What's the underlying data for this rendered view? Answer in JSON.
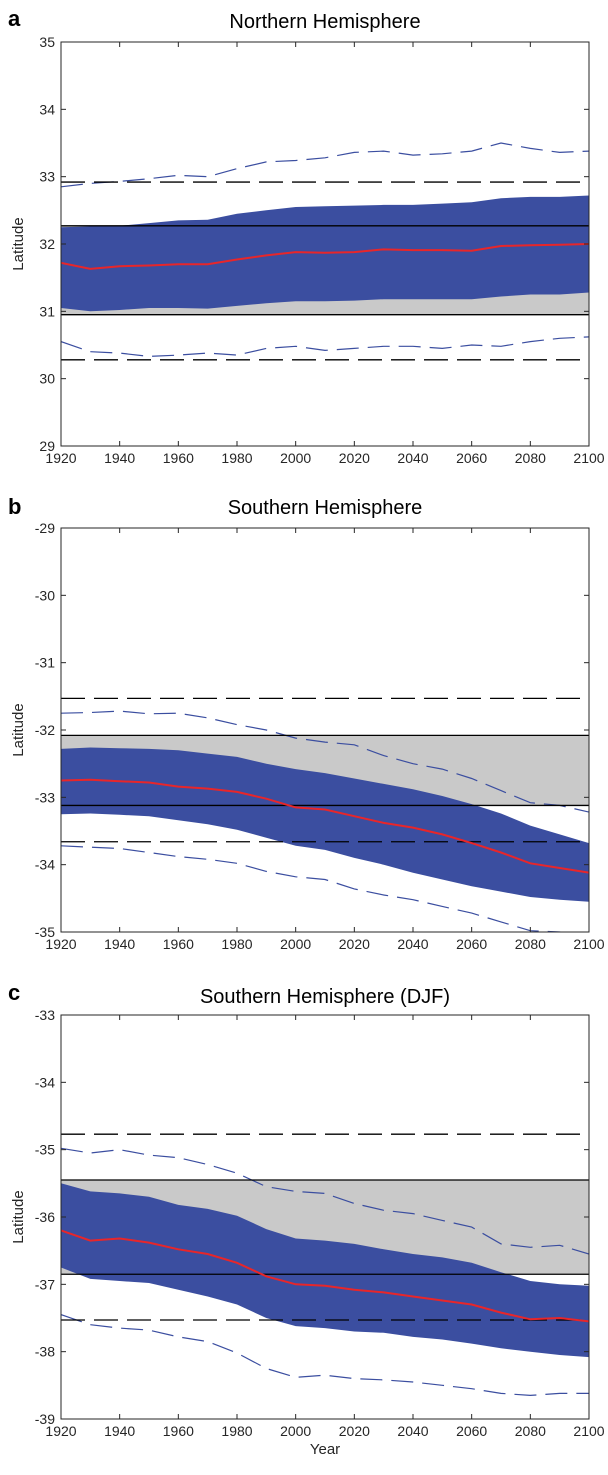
{
  "colors": {
    "band": "#3b4ea0",
    "mean": "#e8262a",
    "gray": "#c9c9c9",
    "dashed_thin": "#3b4ea0",
    "ref": "#000000"
  },
  "chart_data": [
    {
      "type": "line",
      "panel": "a",
      "title": "Northern Hemisphere",
      "xlabel": "",
      "ylabel": "Latitude",
      "xlim": [
        1920,
        2100
      ],
      "ylim": [
        29,
        35
      ],
      "xticks": [
        "1920",
        "1940",
        "1960",
        "1980",
        "2000",
        "2020",
        "2040",
        "2060",
        "2080",
        "2100"
      ],
      "yticks": [
        "29",
        "30",
        "31",
        "32",
        "33",
        "34",
        "35"
      ],
      "reference_box": [
        30.95,
        32.27
      ],
      "reference_dashed": [
        30.28,
        32.92
      ],
      "x": [
        1920,
        1930,
        1940,
        1950,
        1960,
        1970,
        1980,
        1990,
        2000,
        2010,
        2020,
        2030,
        2040,
        2050,
        2060,
        2070,
        2080,
        2090,
        2100
      ],
      "mean": [
        31.72,
        31.63,
        31.67,
        31.68,
        31.7,
        31.7,
        31.77,
        31.83,
        31.88,
        31.87,
        31.88,
        31.92,
        31.91,
        31.91,
        31.9,
        31.97,
        31.98,
        31.99,
        32.0
      ],
      "band_low": [
        31.05,
        31.0,
        31.02,
        31.05,
        31.05,
        31.04,
        31.08,
        31.12,
        31.15,
        31.15,
        31.16,
        31.18,
        31.18,
        31.18,
        31.18,
        31.22,
        31.25,
        31.25,
        31.28
      ],
      "band_high": [
        32.25,
        32.26,
        32.27,
        32.31,
        32.35,
        32.36,
        32.45,
        32.5,
        32.55,
        32.56,
        32.57,
        32.58,
        32.58,
        32.6,
        32.62,
        32.68,
        32.7,
        32.7,
        32.72
      ],
      "upper_thin": [
        32.85,
        32.9,
        32.93,
        32.97,
        33.02,
        33.0,
        33.12,
        33.22,
        33.24,
        33.28,
        33.36,
        33.38,
        33.32,
        33.34,
        33.38,
        33.5,
        33.42,
        33.36,
        33.38
      ],
      "lower_thin": [
        30.55,
        30.4,
        30.38,
        30.33,
        30.35,
        30.38,
        30.35,
        30.45,
        30.48,
        30.42,
        30.45,
        30.48,
        30.48,
        30.45,
        30.5,
        30.48,
        30.55,
        30.6,
        30.62
      ]
    },
    {
      "type": "line",
      "panel": "b",
      "title": "Southern Hemisphere",
      "xlabel": "",
      "ylabel": "Latitude",
      "xlim": [
        1920,
        2100
      ],
      "ylim": [
        -35,
        -29
      ],
      "xticks": [
        "1920",
        "1940",
        "1960",
        "1980",
        "2000",
        "2020",
        "2040",
        "2060",
        "2080",
        "2100"
      ],
      "yticks": [
        "-35",
        "-34",
        "-33",
        "-32",
        "-31",
        "-30",
        "-29"
      ],
      "reference_box": [
        -33.12,
        -32.08
      ],
      "reference_dashed": [
        -33.66,
        -31.53
      ],
      "x": [
        1920,
        1930,
        1940,
        1950,
        1960,
        1970,
        1980,
        1990,
        2000,
        2010,
        2020,
        2030,
        2040,
        2050,
        2060,
        2070,
        2080,
        2090,
        2100
      ],
      "mean": [
        -32.75,
        -32.74,
        -32.76,
        -32.78,
        -32.84,
        -32.87,
        -32.92,
        -33.02,
        -33.15,
        -33.18,
        -33.28,
        -33.38,
        -33.45,
        -33.55,
        -33.68,
        -33.82,
        -33.98,
        -34.05,
        -34.12
      ],
      "band_low": [
        -33.25,
        -33.24,
        -33.26,
        -33.28,
        -33.34,
        -33.4,
        -33.48,
        -33.6,
        -33.72,
        -33.78,
        -33.9,
        -34.0,
        -34.12,
        -34.22,
        -34.32,
        -34.4,
        -34.48,
        -34.52,
        -34.55
      ],
      "band_high": [
        -32.28,
        -32.26,
        -32.27,
        -32.28,
        -32.3,
        -32.35,
        -32.4,
        -32.5,
        -32.58,
        -32.64,
        -32.72,
        -32.8,
        -32.88,
        -32.98,
        -33.1,
        -33.24,
        -33.42,
        -33.55,
        -33.68
      ],
      "upper_thin": [
        -31.75,
        -31.74,
        -31.72,
        -31.76,
        -31.75,
        -31.82,
        -31.92,
        -32.0,
        -32.12,
        -32.18,
        -32.22,
        -32.38,
        -32.5,
        -32.58,
        -32.72,
        -32.9,
        -33.08,
        -33.12,
        -33.22
      ],
      "lower_thin": [
        -33.72,
        -33.74,
        -33.76,
        -33.82,
        -33.88,
        -33.92,
        -33.98,
        -34.1,
        -34.18,
        -34.22,
        -34.36,
        -34.45,
        -34.52,
        -34.62,
        -34.72,
        -34.85,
        -34.98,
        -35.0,
        -35.05
      ]
    },
    {
      "type": "line",
      "panel": "c",
      "title": "Southern Hemisphere (DJF)",
      "xlabel": "Year",
      "ylabel": "Latitude",
      "xlim": [
        1920,
        2100
      ],
      "ylim": [
        -39,
        -33
      ],
      "xticks": [
        "1920",
        "1940",
        "1960",
        "1980",
        "2000",
        "2020",
        "2040",
        "2060",
        "2080",
        "2100"
      ],
      "yticks": [
        "-39",
        "-38",
        "-37",
        "-36",
        "-35",
        "-34",
        "-33"
      ],
      "reference_box": [
        -36.85,
        -35.45
      ],
      "reference_dashed": [
        -37.53,
        -34.77
      ],
      "x": [
        1920,
        1930,
        1940,
        1950,
        1960,
        1970,
        1980,
        1990,
        2000,
        2010,
        2020,
        2030,
        2040,
        2050,
        2060,
        2070,
        2080,
        2090,
        2100
      ],
      "mean": [
        -36.2,
        -36.35,
        -36.32,
        -36.38,
        -36.48,
        -36.55,
        -36.68,
        -36.88,
        -37.0,
        -37.02,
        -37.08,
        -37.12,
        -37.18,
        -37.24,
        -37.3,
        -37.42,
        -37.52,
        -37.5,
        -37.55
      ],
      "band_low": [
        -36.75,
        -36.92,
        -36.95,
        -36.98,
        -37.08,
        -37.18,
        -37.3,
        -37.5,
        -37.62,
        -37.65,
        -37.7,
        -37.72,
        -37.78,
        -37.82,
        -37.88,
        -37.95,
        -38.0,
        -38.05,
        -38.08
      ],
      "band_high": [
        -35.5,
        -35.62,
        -35.65,
        -35.7,
        -35.82,
        -35.88,
        -35.98,
        -36.18,
        -36.32,
        -36.35,
        -36.4,
        -36.48,
        -36.55,
        -36.6,
        -36.68,
        -36.82,
        -36.95,
        -37.0,
        -37.02
      ],
      "upper_thin": [
        -34.98,
        -35.05,
        -35.0,
        -35.08,
        -35.12,
        -35.22,
        -35.35,
        -35.55,
        -35.62,
        -35.65,
        -35.8,
        -35.9,
        -35.95,
        -36.05,
        -36.15,
        -36.4,
        -36.45,
        -36.42,
        -36.55
      ],
      "lower_thin": [
        -37.45,
        -37.6,
        -37.65,
        -37.68,
        -37.78,
        -37.85,
        -38.02,
        -38.25,
        -38.38,
        -38.35,
        -38.4,
        -38.42,
        -38.45,
        -38.5,
        -38.55,
        -38.62,
        -38.65,
        -38.62,
        -38.62
      ]
    }
  ]
}
